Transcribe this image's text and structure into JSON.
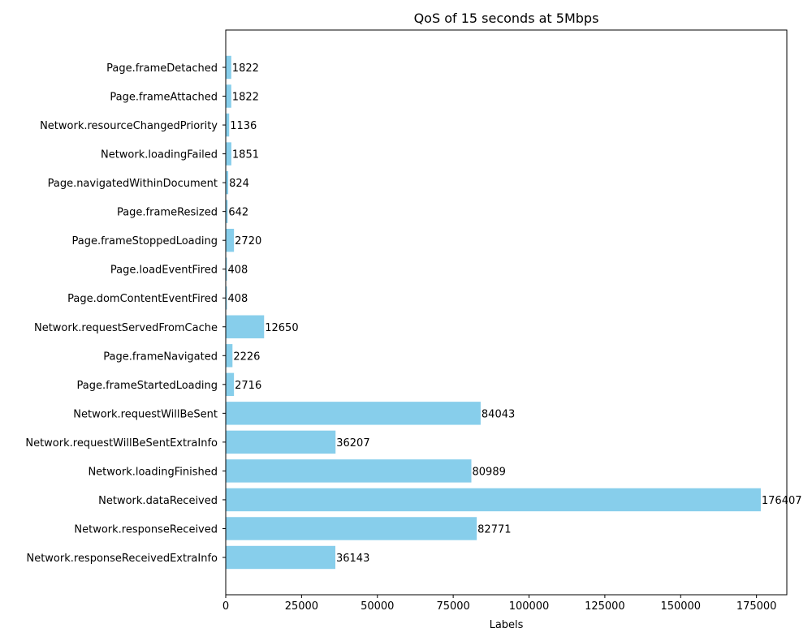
{
  "chart_data": {
    "type": "bar",
    "orientation": "horizontal",
    "title": "QoS of 15 seconds at 5Mbps",
    "xlabel": "Labels",
    "ylabel": "",
    "xlim": [
      0,
      185000
    ],
    "x_ticks": [
      0,
      25000,
      50000,
      75000,
      100000,
      125000,
      150000,
      175000
    ],
    "grid": false,
    "bar_color": "#87CEEB",
    "categories": [
      "Network.responseReceivedExtraInfo",
      "Network.responseReceived",
      "Network.dataReceived",
      "Network.loadingFinished",
      "Network.requestWillBeSentExtraInfo",
      "Network.requestWillBeSent",
      "Page.frameStartedLoading",
      "Page.frameNavigated",
      "Network.requestServedFromCache",
      "Page.domContentEventFired",
      "Page.loadEventFired",
      "Page.frameStoppedLoading",
      "Page.frameResized",
      "Page.navigatedWithinDocument",
      "Network.loadingFailed",
      "Network.resourceChangedPriority",
      "Page.frameAttached",
      "Page.frameDetached"
    ],
    "values": [
      36143,
      82771,
      176407,
      80989,
      36207,
      84043,
      2716,
      2226,
      12650,
      408,
      408,
      2720,
      642,
      824,
      1851,
      1136,
      1822,
      1822
    ]
  }
}
